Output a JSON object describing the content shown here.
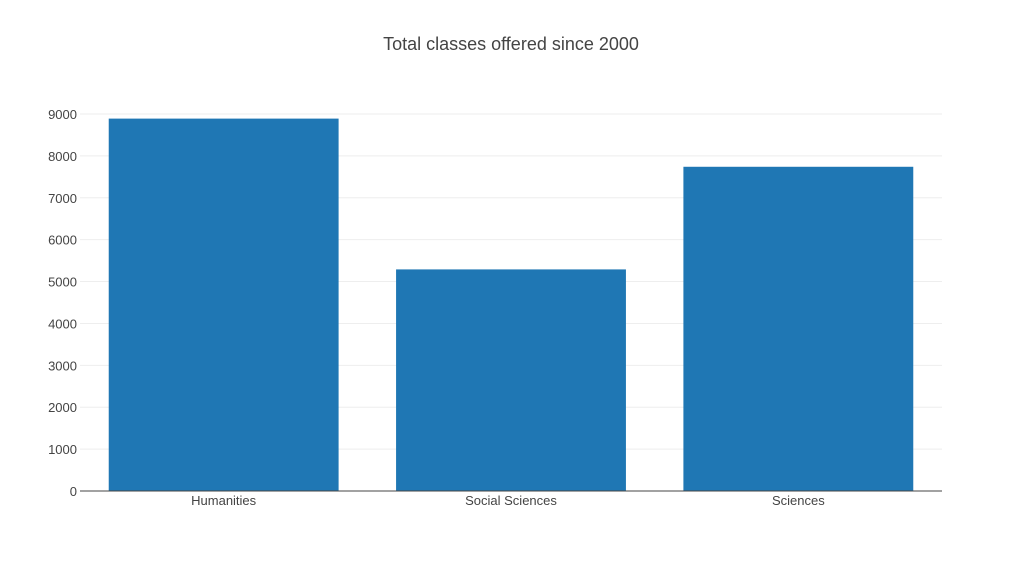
{
  "chart_data": {
    "type": "bar",
    "title": "Total classes offered since 2000",
    "categories": [
      "Humanities",
      "Social Sciences",
      "Sciences"
    ],
    "values": [
      8890,
      5290,
      7740
    ],
    "xlabel": "",
    "ylabel": "",
    "ylim": [
      0,
      9000
    ],
    "yticks": [
      "0",
      "1000",
      "2000",
      "3000",
      "4000",
      "5000",
      "6000",
      "7000",
      "8000",
      "9000"
    ],
    "grid": true,
    "legend": "none",
    "bar_color": "#1f77b4"
  }
}
